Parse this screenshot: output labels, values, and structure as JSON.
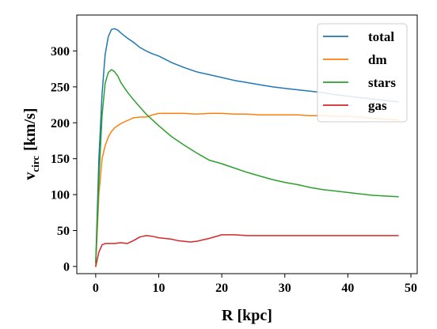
{
  "chart_data": {
    "type": "line",
    "title": "",
    "xlabel": "R [kpc]",
    "ylabel_main": "v",
    "ylabel_sub": "circ",
    "ylabel_unit": "[km/s]",
    "xlim": [
      -3,
      51
    ],
    "ylim": [
      -10,
      350
    ],
    "xticks": [
      0,
      10,
      20,
      30,
      40,
      50
    ],
    "yticks": [
      0,
      50,
      100,
      150,
      200,
      250,
      300
    ],
    "grid": false,
    "legend_position": "top-right",
    "series": [
      {
        "name": "total",
        "color": "#1f77b4",
        "x": [
          0,
          0.5,
          1,
          1.5,
          2,
          2.5,
          3,
          3.5,
          4,
          5,
          6,
          7,
          8,
          9,
          10,
          12,
          14,
          16,
          18,
          20,
          22,
          24,
          26,
          28,
          30,
          32,
          34,
          36,
          38,
          40,
          42,
          44,
          46,
          48
        ],
        "y": [
          5,
          150,
          240,
          295,
          320,
          330,
          331,
          329,
          325,
          318,
          312,
          305,
          300,
          296,
          293,
          284,
          277,
          271,
          267,
          263,
          259,
          256,
          253,
          250,
          248,
          246,
          244,
          242,
          239,
          237,
          235,
          233,
          231,
          229
        ]
      },
      {
        "name": "dm",
        "color": "#ff7f0e",
        "x": [
          0,
          0.5,
          1,
          1.5,
          2,
          2.5,
          3,
          4,
          5,
          6,
          7,
          8,
          9,
          10,
          12,
          14,
          16,
          18,
          20,
          22,
          24,
          26,
          28,
          30,
          32,
          34,
          36,
          38,
          40,
          42,
          44,
          46,
          48
        ],
        "y": [
          0,
          100,
          150,
          168,
          180,
          188,
          193,
          199,
          203,
          207,
          208,
          208,
          211,
          213,
          213,
          213,
          212,
          213,
          213,
          212,
          212,
          211,
          211,
          211,
          211,
          210,
          210,
          209,
          209,
          208,
          206,
          205,
          204
        ]
      },
      {
        "name": "stars",
        "color": "#2ca02c",
        "x": [
          0,
          0.5,
          1,
          1.5,
          2,
          2.5,
          3,
          3.5,
          4,
          5,
          6,
          7,
          8,
          10,
          12,
          14,
          16,
          18,
          20,
          22,
          24,
          26,
          28,
          30,
          32,
          34,
          36,
          38,
          40,
          42,
          44,
          46,
          48
        ],
        "y": [
          5,
          120,
          210,
          255,
          270,
          274,
          271,
          265,
          256,
          243,
          232,
          222,
          212,
          196,
          181,
          169,
          158,
          148,
          143,
          137,
          131,
          126,
          121,
          117,
          114,
          110,
          107,
          105,
          103,
          101,
          99,
          98,
          97
        ]
      },
      {
        "name": "gas",
        "color": "#d62728",
        "x": [
          0,
          0.5,
          1,
          1.5,
          2,
          3,
          4,
          5,
          6,
          7,
          8,
          9,
          10,
          11,
          12,
          13,
          14,
          15,
          16,
          18,
          20,
          22,
          24,
          26,
          28,
          30,
          32,
          34,
          36,
          38,
          40,
          42,
          44,
          46,
          48
        ],
        "y": [
          0,
          20,
          30,
          32,
          32,
          32,
          33,
          32,
          36,
          41,
          43,
          42,
          40,
          39,
          38,
          36,
          35,
          34,
          35,
          39,
          44,
          44,
          43,
          43,
          43,
          43,
          43,
          43,
          43,
          43,
          43,
          43,
          43,
          43,
          43
        ]
      }
    ]
  }
}
